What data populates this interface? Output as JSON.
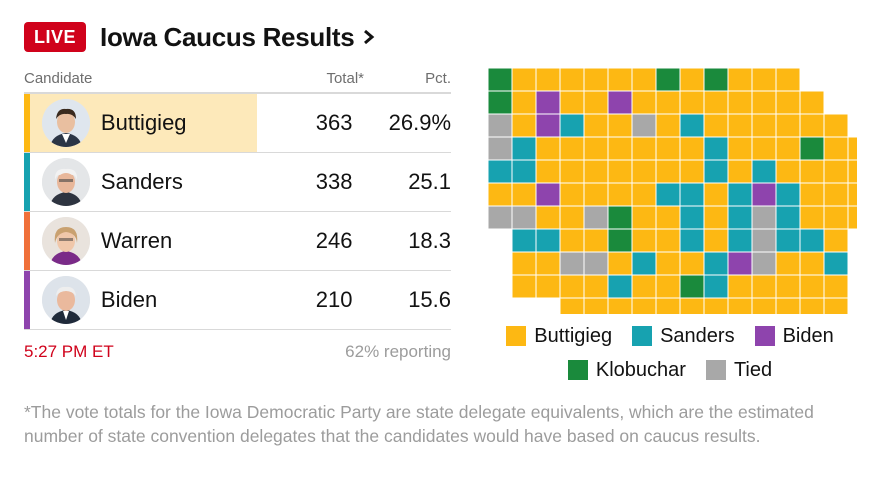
{
  "header": {
    "live_badge": "LIVE",
    "title": "Iowa Caucus Results"
  },
  "table": {
    "col_candidate": "Candidate",
    "col_total": "Total*",
    "col_pct": "Pct.",
    "rows": [
      {
        "name": "Buttigieg",
        "total": "363",
        "pct": "26.9%",
        "color": "#fdb813",
        "leader": true
      },
      {
        "name": "Sanders",
        "total": "338",
        "pct": "25.1",
        "color": "#17a2b0",
        "leader": false
      },
      {
        "name": "Warren",
        "total": "246",
        "pct": "18.3",
        "color": "#f0703a",
        "leader": false
      },
      {
        "name": "Biden",
        "total": "210",
        "pct": "15.6",
        "color": "#8e44ad",
        "leader": false
      }
    ]
  },
  "status": {
    "time": "5:27 PM ET",
    "reporting": "62% reporting"
  },
  "legend": {
    "items": [
      {
        "label": "Buttigieg",
        "color": "#fdb813"
      },
      {
        "label": "Sanders",
        "color": "#17a2b0"
      },
      {
        "label": "Biden",
        "color": "#8e44ad"
      },
      {
        "label": "Klobuchar",
        "color": "#1a8a3c"
      },
      {
        "label": "Tied",
        "color": "#a8a8a8"
      }
    ]
  },
  "footnote": "*The vote totals for the Iowa Democratic Party are state delegate equivalents, which are the estimated number of state convention delegates that the candidates would have based on caucus results.",
  "colors": {
    "live_red": "#d0021b",
    "leader_highlight": "#fde9ba"
  }
}
